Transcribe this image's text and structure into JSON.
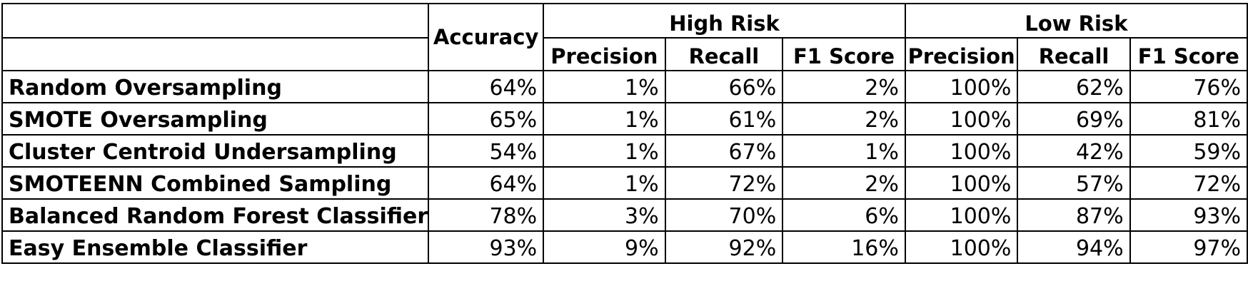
{
  "table": {
    "accuracy_header": "Accuracy",
    "groups": [
      {
        "label": "High Risk"
      },
      {
        "label": "Low Risk"
      }
    ],
    "sub_headers": [
      "Precision",
      "Recall",
      "F1 Score",
      "Precision",
      "Recall",
      "F1 Score"
    ],
    "rows": [
      {
        "model": "Random Oversampling",
        "values": [
          "64%",
          "1%",
          "66%",
          "2%",
          "100%",
          "62%",
          "76%"
        ]
      },
      {
        "model": "SMOTE Oversampling",
        "values": [
          "65%",
          "1%",
          "61%",
          "2%",
          "100%",
          "69%",
          "81%"
        ]
      },
      {
        "model": "Cluster Centroid Undersampling",
        "values": [
          "54%",
          "1%",
          "67%",
          "1%",
          "100%",
          "42%",
          "59%"
        ]
      },
      {
        "model": "SMOTEENN Combined Sampling",
        "values": [
          "64%",
          "1%",
          "72%",
          "2%",
          "100%",
          "57%",
          "72%"
        ]
      },
      {
        "model": "Balanced Random Forest Classifier",
        "values": [
          "78%",
          "3%",
          "70%",
          "6%",
          "100%",
          "87%",
          "93%"
        ]
      },
      {
        "model": "Easy Ensemble Classifier",
        "values": [
          "93%",
          "9%",
          "92%",
          "16%",
          "100%",
          "94%",
          "97%"
        ]
      }
    ]
  }
}
